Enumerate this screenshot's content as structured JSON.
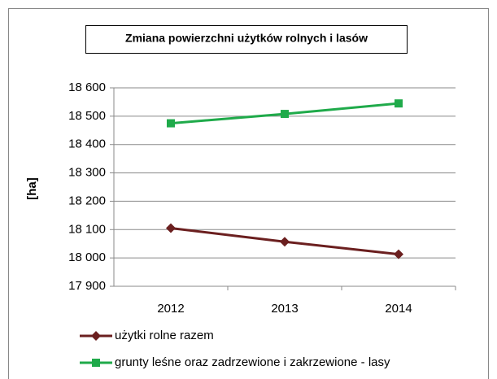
{
  "chart_data": {
    "type": "line",
    "title": "Zmiana powierzchni użytków rolnych i lasów",
    "y_label": "[ha]",
    "categories": [
      "2012",
      "2013",
      "2014"
    ],
    "series": [
      {
        "name": "użytki rolne razem",
        "color": "#6b1f1f",
        "marker": "diamond",
        "values": [
          18105,
          18057,
          18013
        ]
      },
      {
        "name": "grunty leśne oraz zadrzewione i zakrzewione - lasy",
        "color": "#1faa4a",
        "marker": "square",
        "values": [
          18475,
          18508,
          18545
        ]
      }
    ],
    "ylim": [
      17900,
      18600
    ],
    "yticks": [
      {
        "value": 17900,
        "label": "17 900"
      },
      {
        "value": 18000,
        "label": "18 000"
      },
      {
        "value": 18100,
        "label": "18 100"
      },
      {
        "value": 18200,
        "label": "18 200"
      },
      {
        "value": 18300,
        "label": "18 300"
      },
      {
        "value": 18400,
        "label": "18 400"
      },
      {
        "value": 18500,
        "label": "18 500"
      },
      {
        "value": 18600,
        "label": "18 600"
      }
    ],
    "grid": true,
    "legend": "bottom"
  }
}
